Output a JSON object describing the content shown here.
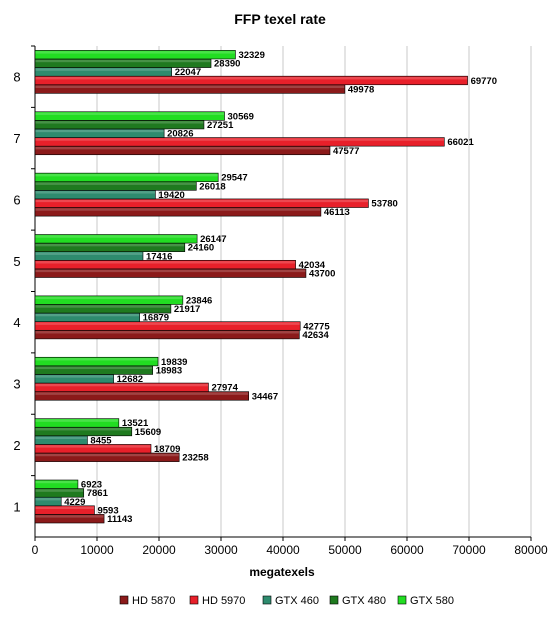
{
  "chart_data": {
    "type": "bar",
    "orientation": "horizontal",
    "title": "FFP texel rate",
    "xlabel": "megatexels",
    "ylabel": "",
    "xlim": [
      0,
      80000
    ],
    "xticks": [
      0,
      10000,
      20000,
      30000,
      40000,
      50000,
      60000,
      70000,
      80000
    ],
    "categories": [
      "1",
      "2",
      "3",
      "4",
      "5",
      "6",
      "7",
      "8"
    ],
    "series": [
      {
        "name": "HD 5870",
        "color": "#8b1a1a",
        "values": [
          11143,
          23258,
          34467,
          42634,
          43700,
          46113,
          47577,
          49978
        ]
      },
      {
        "name": "HD 5970",
        "color": "#e8202a",
        "values": [
          9593,
          18709,
          27974,
          42775,
          42034,
          53780,
          66021,
          69770
        ]
      },
      {
        "name": "GTX 460",
        "color": "#2e8b6e",
        "values": [
          4229,
          8455,
          12682,
          16879,
          17416,
          19420,
          20826,
          22047
        ]
      },
      {
        "name": "GTX 480",
        "color": "#1f7a1f",
        "values": [
          7861,
          15609,
          18983,
          21917,
          24160,
          26018,
          27251,
          28390
        ]
      },
      {
        "name": "GTX 580",
        "color": "#22dd22",
        "values": [
          6923,
          13521,
          19839,
          23846,
          26147,
          29547,
          30569,
          32329
        ]
      }
    ],
    "grid": true,
    "legend_position": "bottom"
  }
}
